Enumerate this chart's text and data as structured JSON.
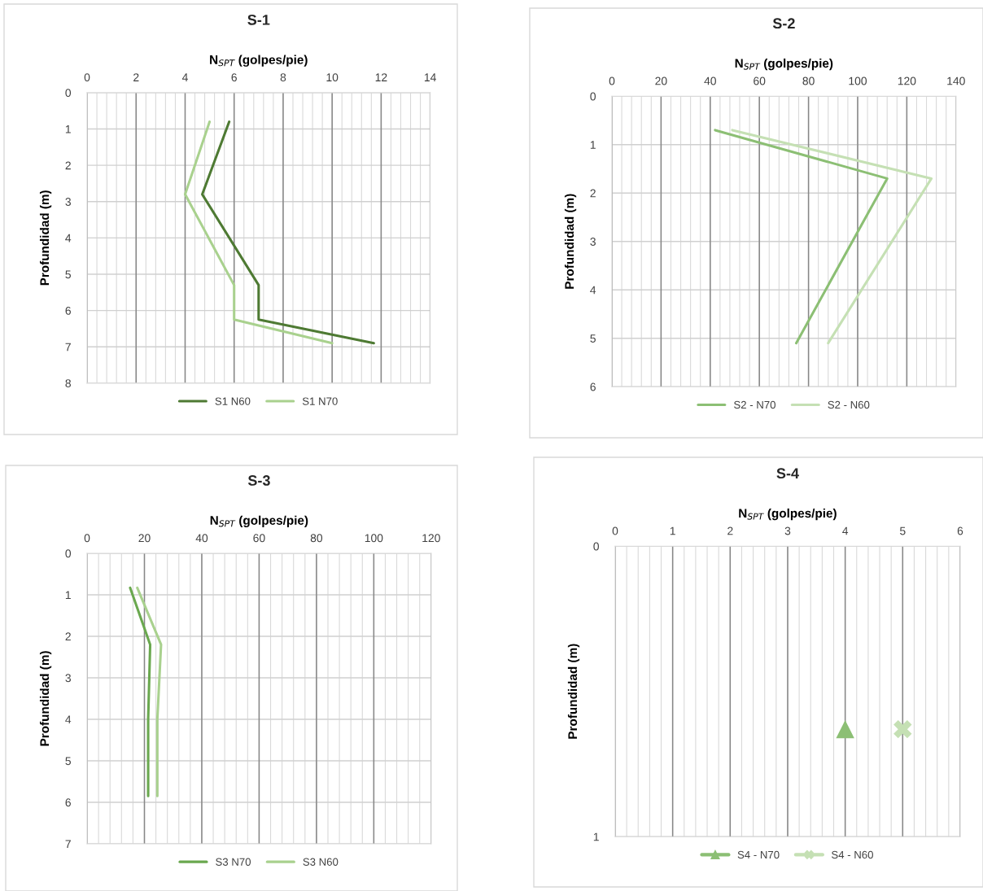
{
  "chart_data": [
    {
      "type": "line",
      "title": "S-1",
      "xlabel": "N$_{SPT}$ (golpes/pie)",
      "ylabel": "Profundidad (m)",
      "xlim": [
        0,
        14
      ],
      "xticks": [
        0,
        2,
        4,
        6,
        8,
        10,
        12,
        14
      ],
      "ylim": [
        8,
        0
      ],
      "yticks": [
        0,
        1,
        2,
        3,
        4,
        5,
        6,
        7,
        8
      ],
      "grid": true,
      "legend": "bottom",
      "marker": "none",
      "line_style": "solid",
      "series": [
        {
          "name": "S1 N60",
          "color": "#4e7a33",
          "x": [
            5.8,
            4.7,
            7.0,
            7.0,
            11.7
          ],
          "values": [
            0.8,
            2.8,
            5.3,
            6.25,
            6.9
          ]
        },
        {
          "name": "S1 N70",
          "color": "#a9d18e",
          "x": [
            5.0,
            4.0,
            6.0,
            6.0,
            10.0
          ],
          "values": [
            0.8,
            2.8,
            5.3,
            6.25,
            6.9
          ]
        }
      ]
    },
    {
      "type": "line",
      "title": "S-2",
      "xlabel": "N$_{SPT}$ (golpes/pie)",
      "ylabel": "Profundidad (m)",
      "xlim": [
        0,
        140
      ],
      "xticks": [
        0,
        20,
        40,
        60,
        80,
        100,
        120,
        140
      ],
      "ylim": [
        6,
        0
      ],
      "yticks": [
        0,
        1,
        2,
        3,
        4,
        5,
        6
      ],
      "grid": true,
      "legend": "bottom",
      "marker": "none",
      "line_style": "solid",
      "series": [
        {
          "name": "S2 - N70",
          "color": "#8cbf74",
          "x": [
            42,
            112,
            75
          ],
          "values": [
            0.7,
            1.7,
            5.1
          ]
        },
        {
          "name": "S2 - N60",
          "color": "#c5e0b4",
          "x": [
            49,
            130,
            88
          ],
          "values": [
            0.7,
            1.7,
            5.1
          ]
        }
      ]
    },
    {
      "type": "line",
      "title": "S-3",
      "xlabel": "N$_{SPT}$ (golpes/pie)",
      "ylabel": "Profundidad (m)",
      "xlim": [
        0,
        120
      ],
      "xticks": [
        0,
        20,
        40,
        60,
        80,
        100,
        120
      ],
      "ylim": [
        7,
        0
      ],
      "yticks": [
        0,
        1,
        2,
        3,
        4,
        5,
        6,
        7
      ],
      "grid": true,
      "legend": "bottom",
      "marker": "none",
      "line_style": "solid",
      "series": [
        {
          "name": "S3 N70",
          "color": "#6aa84f",
          "x": [
            15,
            22,
            21.3,
            21.3
          ],
          "values": [
            0.83,
            2.2,
            4.0,
            5.85
          ]
        },
        {
          "name": "S3 N60",
          "color": "#a9d18e",
          "x": [
            17.5,
            25.8,
            24.5,
            24.5
          ],
          "values": [
            0.83,
            2.2,
            4.0,
            5.85
          ]
        }
      ]
    },
    {
      "type": "scatter",
      "title": "S-4",
      "xlabel": "N$_{SPT}$ (golpes/pie)",
      "ylabel": "Profundidad (m)",
      "xlim": [
        0,
        6
      ],
      "xticks": [
        0,
        1,
        2,
        3,
        4,
        5,
        6
      ],
      "ylim": [
        1,
        0
      ],
      "yticks": [
        0,
        1
      ],
      "grid": true,
      "legend": "bottom",
      "series": [
        {
          "name": "S4 - N70",
          "color": "#8cbf74",
          "marker": "triangle",
          "x": [
            4
          ],
          "values": [
            0.63
          ]
        },
        {
          "name": "S4 - N60",
          "color": "#c5e0b4",
          "marker": "cross",
          "x": [
            5
          ],
          "values": [
            0.63
          ]
        }
      ]
    }
  ]
}
